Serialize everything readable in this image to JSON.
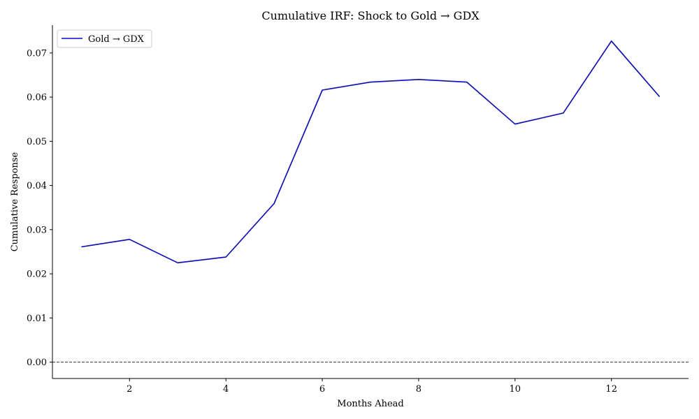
{
  "chart_data": {
    "type": "line",
    "title": "Cumulative IRF: Shock to Gold → GDX",
    "xlabel": "Months Ahead",
    "ylabel": "Cumulative Response",
    "x": [
      1,
      2,
      3,
      4,
      5,
      6,
      7,
      8,
      9,
      10,
      11,
      12,
      13
    ],
    "series": [
      {
        "name": "Gold → GDX",
        "color": "#0000ff",
        "values": [
          0.0261,
          0.0278,
          0.0225,
          0.0238,
          0.0359,
          0.0616,
          0.0634,
          0.064,
          0.0634,
          0.0539,
          0.0564,
          0.0727,
          0.0601
        ]
      }
    ],
    "xlim": [
      0.4,
      13.6
    ],
    "ylim": [
      -0.0037,
      0.0763
    ],
    "xticks": [
      2,
      4,
      6,
      8,
      10,
      12
    ],
    "yticks": [
      0.0,
      0.01,
      0.02,
      0.03,
      0.04,
      0.05,
      0.06,
      0.07
    ],
    "ytick_labels": [
      "0.00",
      "0.01",
      "0.02",
      "0.03",
      "0.04",
      "0.05",
      "0.06",
      "0.07"
    ],
    "reference_line": {
      "y": 0,
      "style": "dashed",
      "color": "#000000"
    },
    "legend_position": "top-left",
    "grid": false
  }
}
